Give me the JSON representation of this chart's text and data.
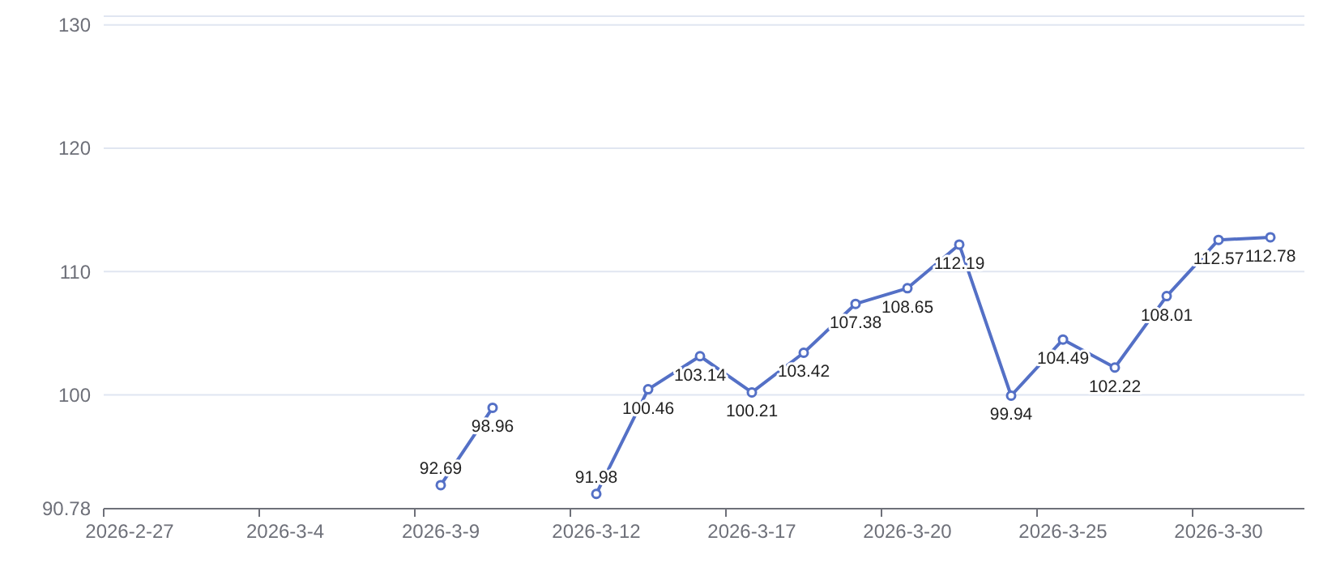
{
  "chart_data": {
    "type": "line",
    "categories": [
      "2026-2-27",
      null,
      null,
      "2026-3-4",
      null,
      null,
      "2026-3-9",
      null,
      null,
      "2026-3-12",
      null,
      null,
      "2026-3-17",
      null,
      null,
      "2026-3-20",
      null,
      null,
      "2026-3-25",
      null,
      null,
      "2026-3-30",
      null
    ],
    "series": [
      {
        "color": "#5470c6",
        "values": [
          null,
          null,
          null,
          null,
          null,
          null,
          92.69,
          98.96,
          null,
          91.98,
          100.46,
          103.14,
          100.21,
          103.42,
          107.38,
          108.65,
          112.19,
          99.94,
          104.49,
          102.22,
          108.01,
          112.57,
          112.78
        ]
      }
    ],
    "ylim": [
      90.78,
      130.7
    ],
    "yticks": [
      90.78,
      100,
      110,
      120,
      130,
      {
        "value": 130.7,
        "label": null
      }
    ],
    "grid": "y",
    "marker": "circle",
    "line_style": "solid",
    "data_labels": true
  }
}
